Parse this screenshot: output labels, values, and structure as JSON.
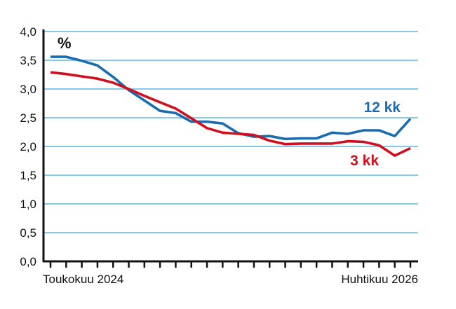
{
  "chart_data": {
    "type": "line",
    "unit_label": "%",
    "ylim": [
      0,
      4
    ],
    "y_ticks": [
      "0,0",
      "0,5",
      "1,0",
      "1,5",
      "2,0",
      "2,5",
      "3,0",
      "3,5",
      "4,0"
    ],
    "x_labels": {
      "start": "Toukokuu 2024",
      "end": "Huhtikuu 2026"
    },
    "grid": true,
    "colors": {
      "grid": "#5bb8e8",
      "axis": "#111111",
      "series_12kk": "#1a6cb0",
      "series_3kk": "#d0101e"
    },
    "series": [
      {
        "name": "12 kk",
        "values": [
          3.56,
          3.56,
          3.49,
          3.41,
          3.21,
          2.98,
          2.8,
          2.62,
          2.58,
          2.43,
          2.43,
          2.4,
          2.23,
          2.17,
          2.18,
          2.13,
          2.14,
          2.14,
          2.24,
          2.22,
          2.28,
          2.28,
          2.18,
          2.48
        ]
      },
      {
        "name": "3 kk",
        "values": [
          3.29,
          3.26,
          3.22,
          3.18,
          3.11,
          3.0,
          2.88,
          2.77,
          2.66,
          2.49,
          2.32,
          2.24,
          2.22,
          2.2,
          2.1,
          2.04,
          2.05,
          2.05,
          2.05,
          2.09,
          2.08,
          2.02,
          1.84,
          1.97
        ]
      }
    ]
  }
}
